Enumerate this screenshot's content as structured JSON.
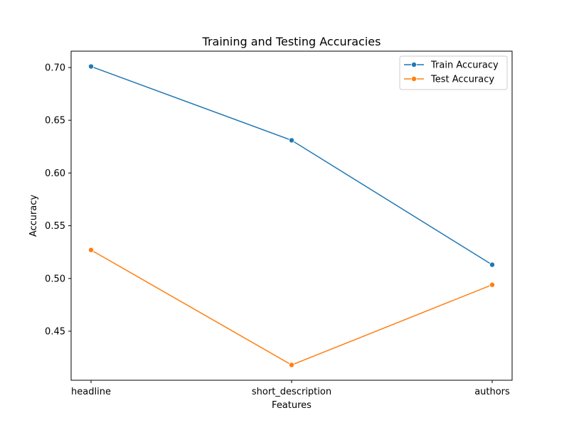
{
  "chart_data": {
    "type": "line",
    "title": "Training and Testing Accuracies",
    "xlabel": "Features",
    "ylabel": "Accuracy",
    "categories": [
      "headline",
      "short_description",
      "authors"
    ],
    "ylim": [
      0.4035,
      0.7155
    ],
    "yticks": [
      0.45,
      0.5,
      0.55,
      0.6,
      0.65,
      0.7
    ],
    "ytick_labels": [
      "0.45",
      "0.50",
      "0.55",
      "0.60",
      "0.65",
      "0.70"
    ],
    "grid": false,
    "legend_position": "top-right",
    "series": [
      {
        "name": "Train Accuracy",
        "color": "#1f77b4",
        "marker": "circle",
        "values": [
          0.701,
          0.631,
          0.513
        ]
      },
      {
        "name": "Test Accuracy",
        "color": "#ff7f0e",
        "marker": "circle",
        "values": [
          0.527,
          0.418,
          0.494
        ]
      }
    ]
  }
}
